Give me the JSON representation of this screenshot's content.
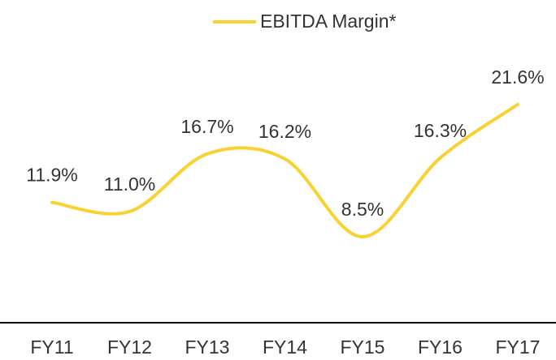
{
  "chart_data": {
    "type": "line",
    "categories": [
      "FY11",
      "FY12",
      "FY13",
      "FY14",
      "FY15",
      "FY16",
      "FY17"
    ],
    "series": [
      {
        "name": "EBITDA Margin*",
        "color": "#f9d232",
        "values": [
          11.9,
          11.0,
          16.7,
          16.2,
          8.5,
          16.3,
          21.6
        ],
        "value_labels": [
          "11.9%",
          "11.0%",
          "16.7%",
          "16.2%",
          "8.5%",
          "16.3%",
          "21.6%"
        ]
      }
    ],
    "ylim": [
      0,
      30
    ],
    "legend": "top"
  }
}
